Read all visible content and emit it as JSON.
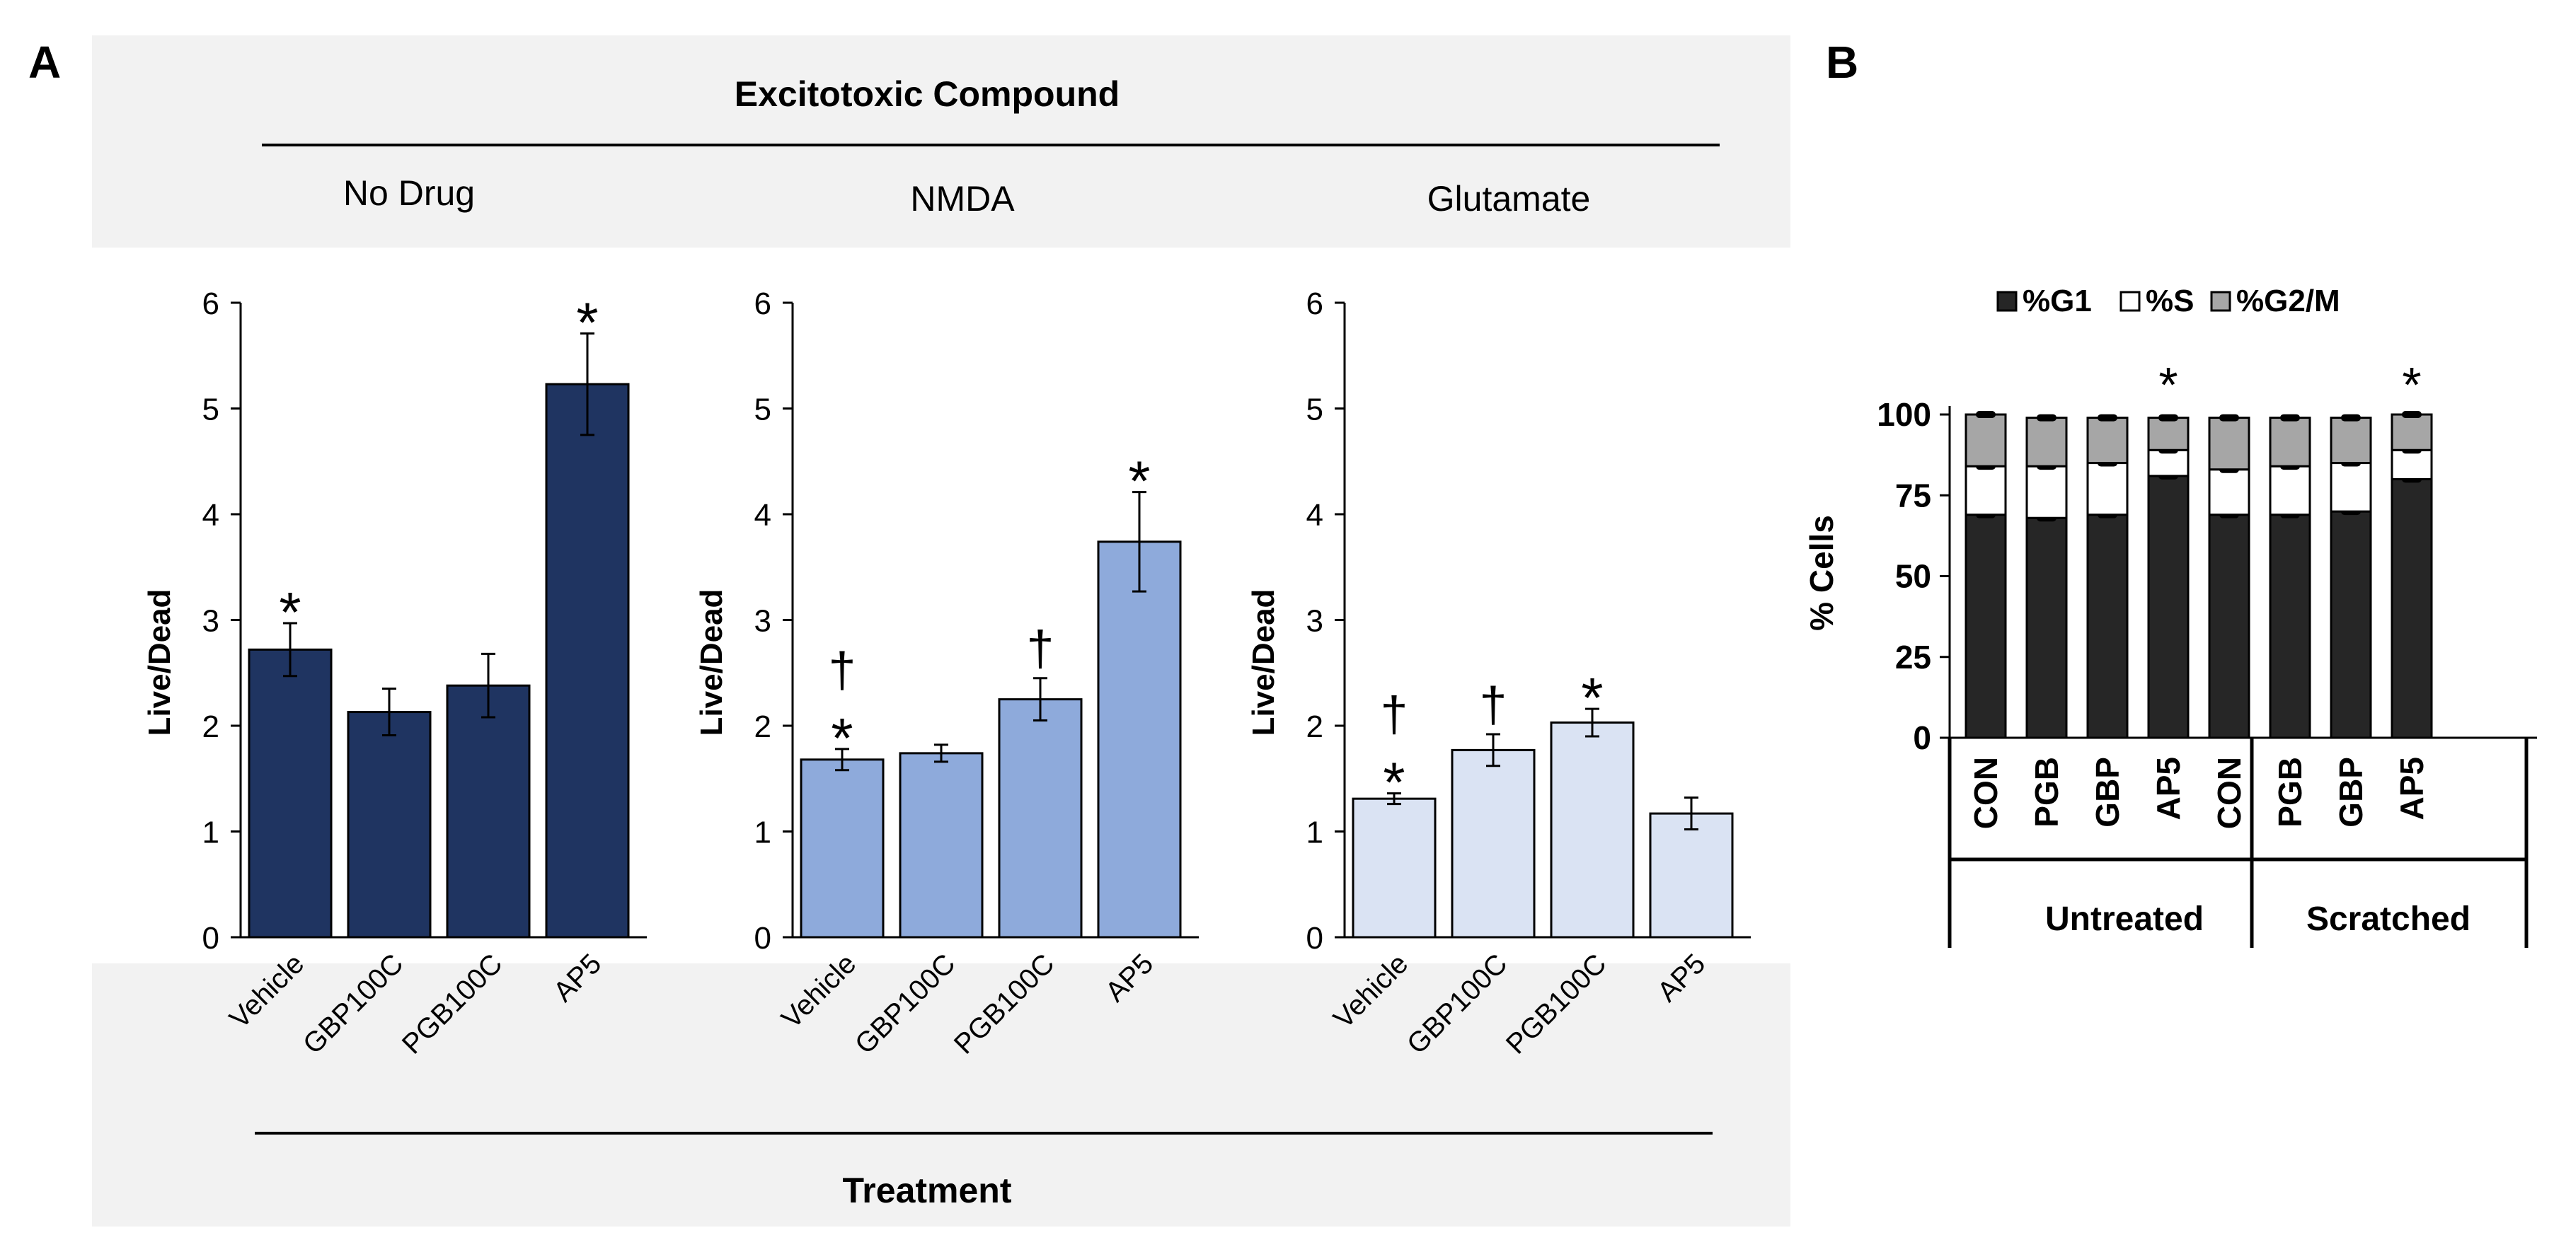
{
  "panel_a": {
    "label": "A",
    "top_header": "Excitotoxic Compound",
    "bottom_header": "Treatment",
    "groups": [
      "No Drug",
      "NMDA",
      "Glutamate"
    ]
  },
  "panel_b": {
    "label": "B",
    "legend": [
      "%G1",
      "%S",
      "%G2/M"
    ],
    "group_labels": [
      "Untreated",
      "Scratched"
    ]
  },
  "colors": {
    "no_drug": "#1f3461",
    "nmda": "#8eaadb",
    "glutamate": "#dae3f3",
    "header_bg": "#f2f2f2",
    "g1": "#262626",
    "s": "#ffffff",
    "g2m": "#a6a6a6"
  },
  "chart_data": [
    {
      "type": "bar",
      "panel": "A",
      "group": "No Drug",
      "categories": [
        "Vehicle",
        "GBP100C",
        "PGB100C",
        "AP5"
      ],
      "values": [
        2.72,
        2.13,
        2.38,
        5.23
      ],
      "errors": [
        0.25,
        0.22,
        0.3,
        0.48
      ],
      "annotations": [
        "*",
        "",
        "",
        "*"
      ],
      "ylabel": "Live/Dead",
      "ylim": [
        0,
        6
      ],
      "yticks": [
        0,
        1,
        2,
        3,
        4,
        5,
        6
      ]
    },
    {
      "type": "bar",
      "panel": "A",
      "group": "NMDA",
      "categories": [
        "Vehicle",
        "GBP100C",
        "PGB100C",
        "AP5"
      ],
      "values": [
        1.68,
        1.74,
        2.25,
        3.74
      ],
      "errors": [
        0.1,
        0.08,
        0.2,
        0.47
      ],
      "annotations": [
        "†\n*",
        "",
        "†",
        "*"
      ],
      "ylabel": "Live/Dead",
      "ylim": [
        0,
        6
      ],
      "yticks": [
        0,
        1,
        2,
        3,
        4,
        5,
        6
      ]
    },
    {
      "type": "bar",
      "panel": "A",
      "group": "Glutamate",
      "categories": [
        "Vehicle",
        "GBP100C",
        "PGB100C",
        "AP5"
      ],
      "values": [
        1.31,
        1.77,
        2.03,
        1.17
      ],
      "errors": [
        0.05,
        0.15,
        0.13,
        0.15
      ],
      "annotations": [
        "†\n*",
        "†",
        "*",
        ""
      ],
      "ylabel": "Live/Dead",
      "ylim": [
        0,
        6
      ],
      "yticks": [
        0,
        1,
        2,
        3,
        4,
        5,
        6
      ]
    },
    {
      "type": "bar",
      "stacked": true,
      "panel": "B",
      "categories": [
        "CON",
        "PGB",
        "GBP",
        "AP5",
        "CON",
        "PGB",
        "GBP",
        "AP5"
      ],
      "groups": [
        "Untreated",
        "Untreated",
        "Untreated",
        "Untreated",
        "Scratched",
        "Scratched",
        "Scratched",
        "Scratched"
      ],
      "series": [
        {
          "name": "%G1",
          "values": [
            69,
            68,
            69,
            81,
            69,
            69,
            70,
            80
          ]
        },
        {
          "name": "%S",
          "values": [
            15,
            16,
            16,
            8,
            14,
            15,
            15,
            9
          ]
        },
        {
          "name": "%G2/M",
          "values": [
            16,
            15,
            14,
            10,
            16,
            15,
            14,
            11
          ]
        }
      ],
      "annotations": [
        "",
        "",
        "",
        "*",
        "",
        "",
        "",
        "*"
      ],
      "ylabel": "% Cells",
      "ylim": [
        0,
        100
      ],
      "yticks": [
        0,
        25,
        50,
        75,
        100
      ]
    }
  ]
}
